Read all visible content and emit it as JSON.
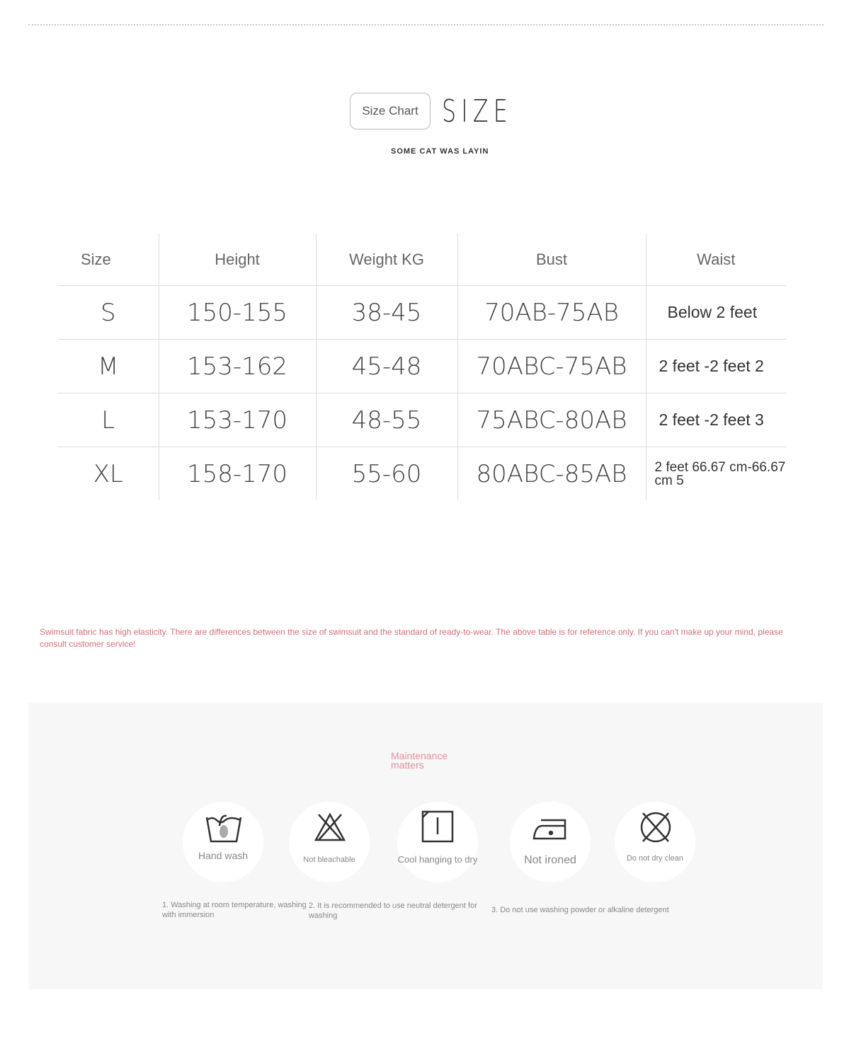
{
  "header": {
    "chip": "Size Chart",
    "title": "SIZE",
    "tagline": "SOME CAT WAS LAYIN"
  },
  "table": {
    "columns": [
      "Size",
      "Height",
      "Weight KG",
      "Bust",
      "Waist"
    ],
    "rows": [
      [
        "S",
        "150-155",
        "38-45",
        "70AB-75AB",
        "Below 2 feet"
      ],
      [
        "M",
        "153-162",
        "45-48",
        "70ABC-75AB",
        "2 feet -2 feet 2"
      ],
      [
        "L",
        "153-170",
        "48-55",
        "75ABC-80AB",
        "2 feet -2 feet 3"
      ],
      [
        "XL",
        "158-170",
        "55-60",
        "80ABC-85AB",
        "2 feet 66.67 cm-66.67 cm 5"
      ]
    ]
  },
  "note": "Swimsuit fabric has high elasticity. There are differences between the size of swimsuit and the standard of ready-to-wear. The above table is for reference only. If you can't make up your mind, please consult customer service!",
  "care": {
    "title": "Maintenance matters",
    "accent": "#e0909a",
    "icons": [
      {
        "icon": "hand-wash-icon",
        "label": "Hand wash"
      },
      {
        "icon": "no-bleach-icon",
        "label": "Not bleachable"
      },
      {
        "icon": "line-dry-icon",
        "label": "Cool hanging to dry"
      },
      {
        "icon": "iron-icon",
        "label": "Not ironed"
      },
      {
        "icon": "no-dry-clean-icon",
        "label": "Do not dry clean"
      }
    ],
    "steps": [
      "1. Washing at room temperature, washing with immersion",
      "2. It is recommended to use neutral detergent for washing",
      "3. Do not use washing powder or alkaline detergent"
    ]
  }
}
